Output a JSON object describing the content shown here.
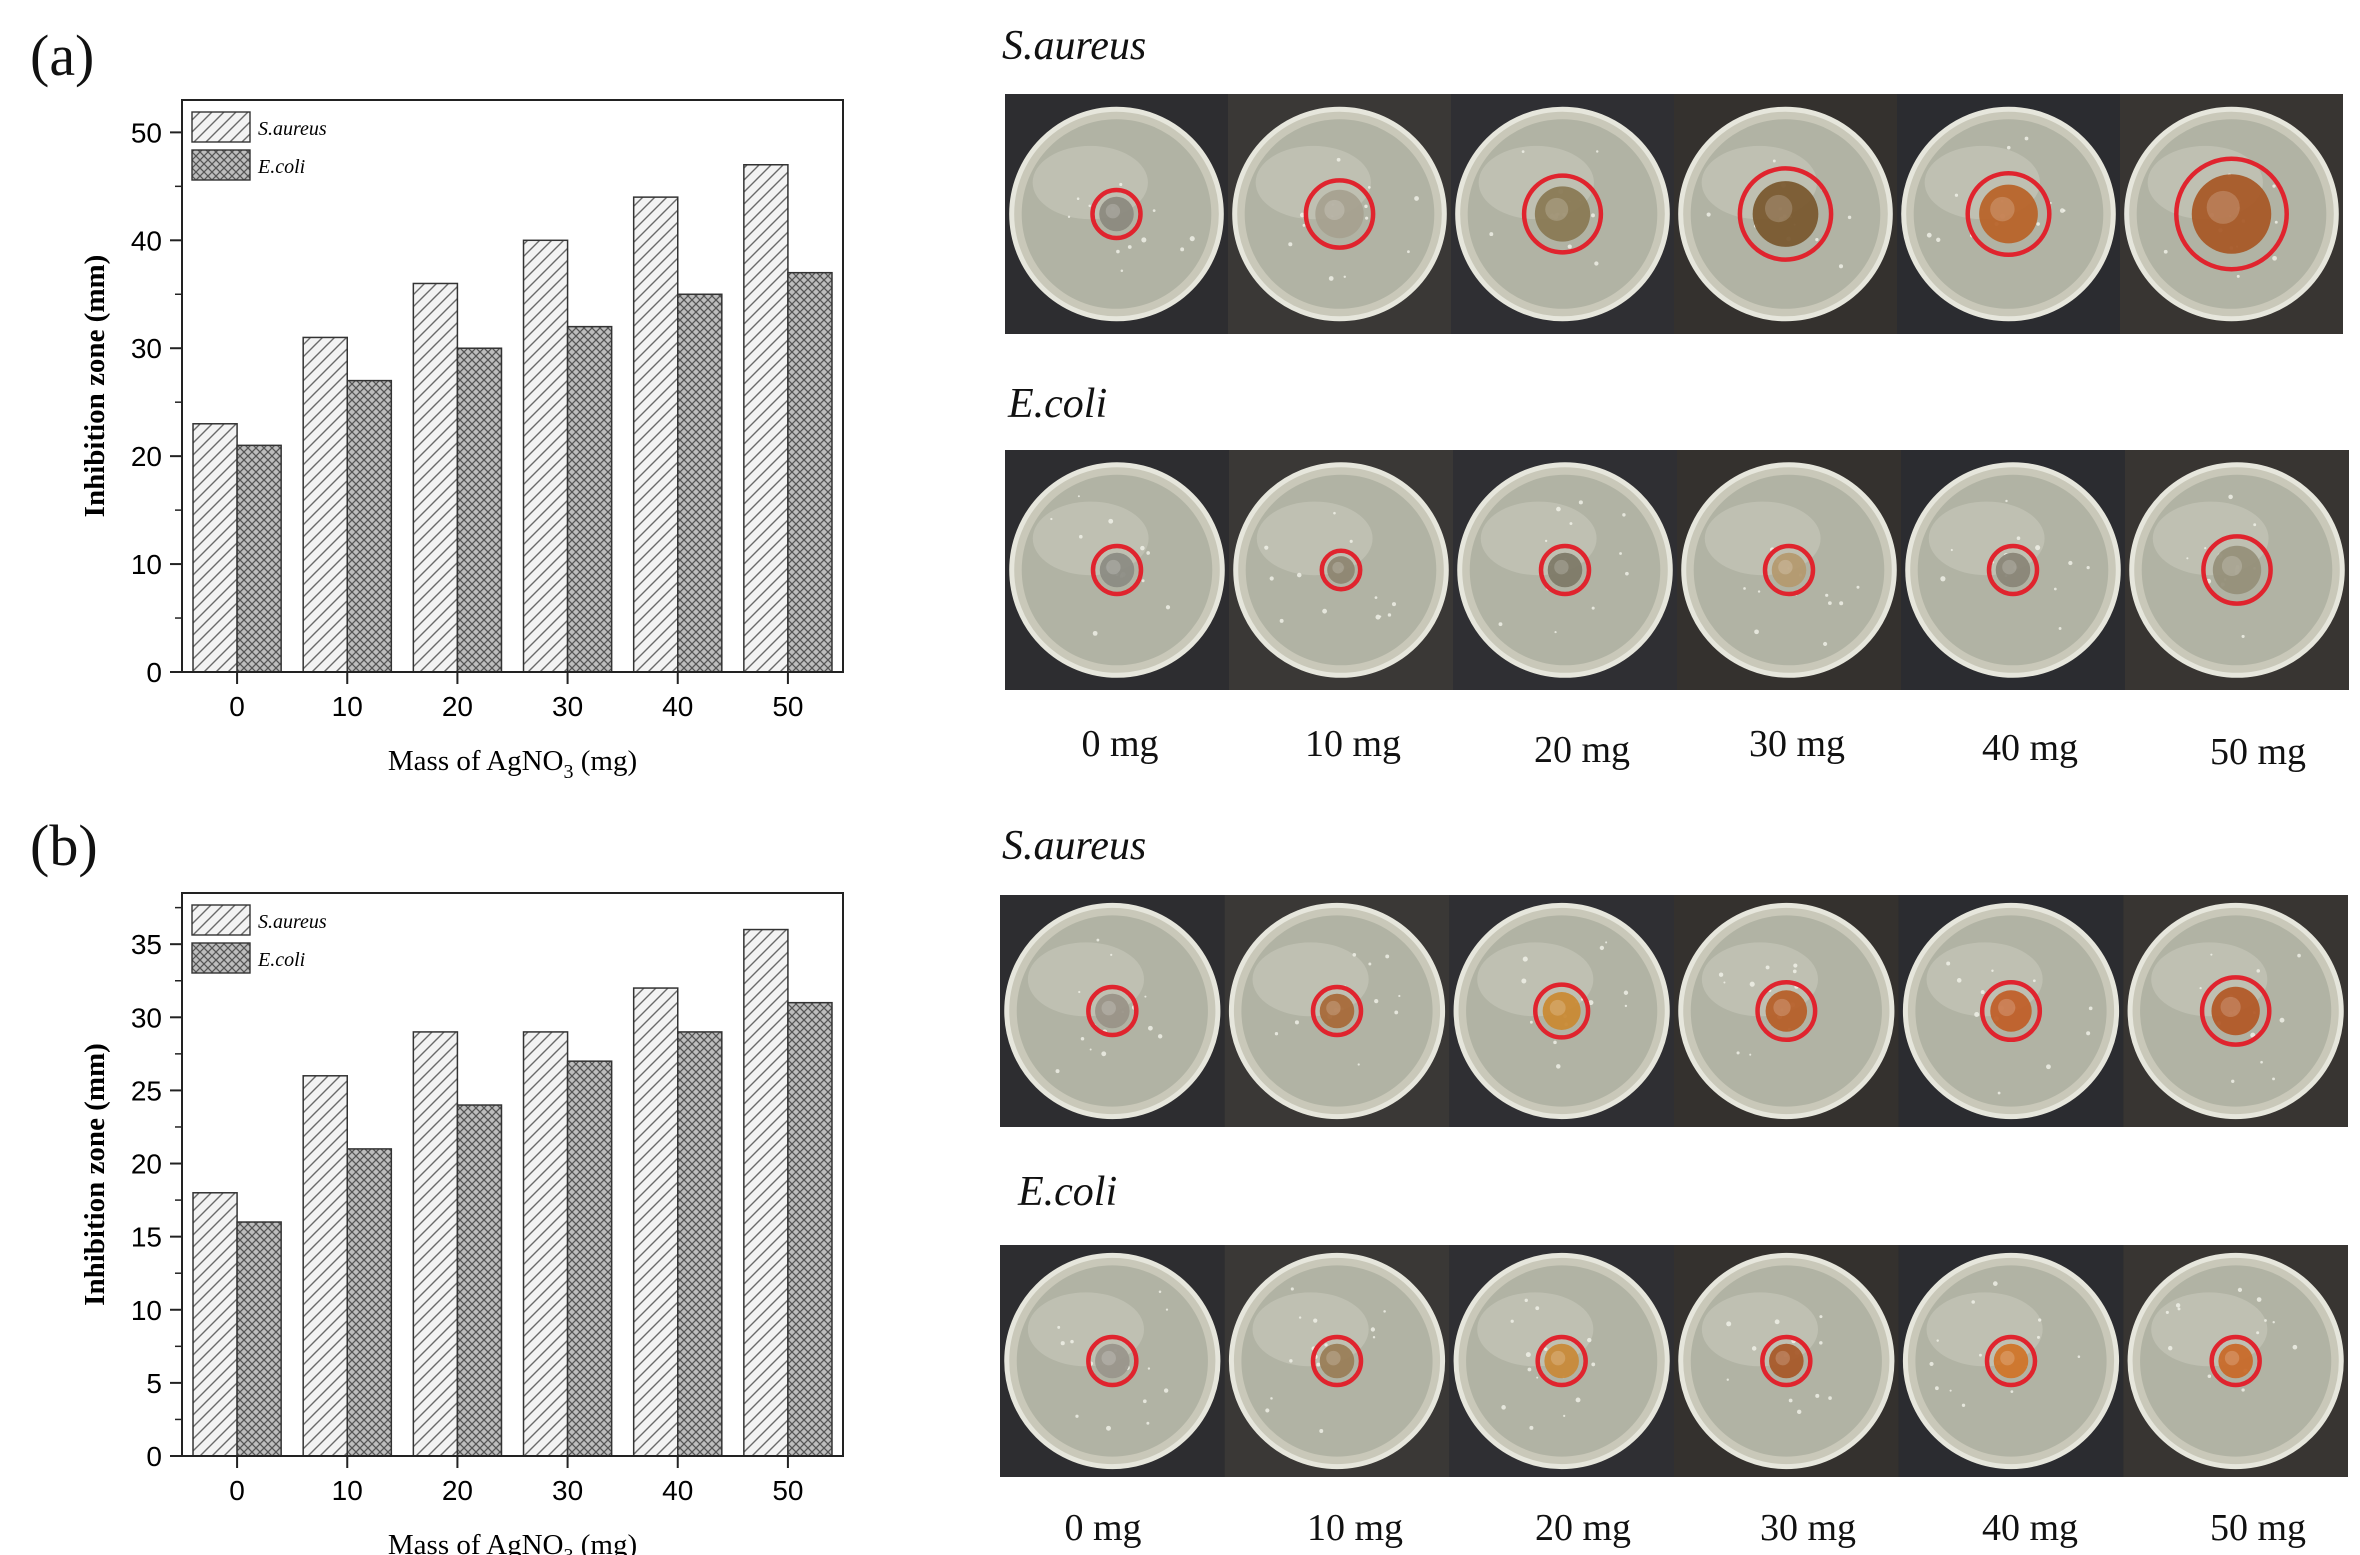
{
  "panels": [
    {
      "label": "(a)",
      "chart": {
        "ylabel": "Inhibition zone (mm)",
        "xlabel_prefix": "Mass of AgNO",
        "xlabel_sub": "3",
        "xlabel_suffix": " (mg)",
        "yticks": [
          "0",
          "10",
          "20",
          "30",
          "40",
          "50"
        ],
        "legend": [
          "S.aureus",
          "E.coli"
        ]
      },
      "photos": {
        "top_title": "S.aureus",
        "bottom_title": "E.coli",
        "mass_labels": [
          "0 mg",
          "10 mg",
          "20 mg",
          "30 mg",
          "40 mg",
          "50 mg"
        ]
      }
    },
    {
      "label": "(b)",
      "chart": {
        "ylabel": "Inhibition zone (mm)",
        "xlabel_prefix": "Mass of AgNO",
        "xlabel_sub": "3",
        "xlabel_suffix": " (mg)",
        "yticks": [
          "0",
          "5",
          "10",
          "15",
          "20",
          "25",
          "30",
          "35"
        ],
        "legend": [
          "S.aureus",
          "E.coli"
        ]
      },
      "photos": {
        "top_title": "S.aureus",
        "bottom_title": "E.coli",
        "mass_labels": [
          "0 mg",
          "10 mg",
          "20 mg",
          "30 mg",
          "40 mg",
          "50 mg"
        ]
      }
    }
  ],
  "chart_data": [
    {
      "type": "bar",
      "panel": "(a)",
      "categories": [
        "0",
        "10",
        "20",
        "30",
        "40",
        "50"
      ],
      "series": [
        {
          "name": "S.aureus",
          "values": [
            23,
            31,
            36,
            40,
            44,
            47
          ]
        },
        {
          "name": "E.coli",
          "values": [
            21,
            27,
            30,
            32,
            35,
            37
          ]
        }
      ],
      "xlabel": "Mass of AgNO3 (mg)",
      "ylabel": "Inhibition zone (mm)",
      "ylim": [
        0,
        53
      ],
      "legend_position": "top-left"
    },
    {
      "type": "bar",
      "panel": "(b)",
      "categories": [
        "0",
        "10",
        "20",
        "30",
        "40",
        "50"
      ],
      "series": [
        {
          "name": "S.aureus",
          "values": [
            18,
            26,
            29,
            29,
            32,
            36
          ]
        },
        {
          "name": "E.coli",
          "values": [
            16,
            21,
            24,
            27,
            29,
            31
          ]
        }
      ],
      "xlabel": "Mass of AgNO3 (mg)",
      "ylabel": "Inhibition zone (mm)",
      "ylim": [
        0,
        38.5
      ],
      "legend_position": "top-left"
    }
  ],
  "plates": {
    "a_saureus": {
      "ring_diameters": [
        1.0,
        1.4,
        1.6,
        1.9,
        1.7,
        2.3
      ],
      "colony_colors": [
        "#8c8a80",
        "#a6a190",
        "#8a7a55",
        "#7a5a30",
        "#b8642a",
        "#a85a28"
      ]
    },
    "a_ecoli": {
      "ring_diameters": [
        1.0,
        0.8,
        1.0,
        1.0,
        1.0,
        1.4
      ],
      "colony_colors": [
        "#8c8c84",
        "#8e8672",
        "#7e7a68",
        "#b49a70",
        "#8a8678",
        "#96907a"
      ]
    },
    "b_saureus": {
      "ring_diameters": [
        1.0,
        1.0,
        1.1,
        1.2,
        1.2,
        1.4
      ],
      "colony_colors": [
        "#9a9488",
        "#a86a3a",
        "#c98a35",
        "#b6602a",
        "#c0602a",
        "#b25a28"
      ]
    },
    "b_ecoli": {
      "ring_diameters": [
        1.0,
        1.0,
        1.0,
        1.0,
        1.0,
        1.0
      ],
      "colony_colors": [
        "#9a968c",
        "#9a7e58",
        "#c88a3a",
        "#a85a2a",
        "#d0752a",
        "#c86a2a"
      ]
    },
    "ring_color": "#e0242e"
  }
}
